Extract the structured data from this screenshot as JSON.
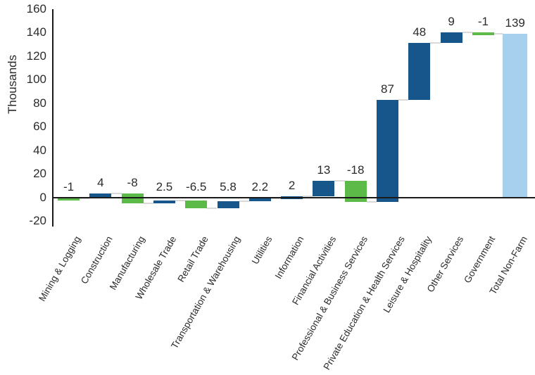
{
  "chart_data": {
    "type": "waterfall-bar",
    "title": "",
    "ylabel": "Thousands",
    "xlabel": "",
    "ylim": [
      -20,
      160
    ],
    "y_ticks": [
      160,
      140,
      120,
      100,
      80,
      60,
      40,
      20,
      0,
      -20
    ],
    "grid": false,
    "legend": "none",
    "categories": [
      "Mining & Logging",
      "Construction",
      "Manufacturing",
      "Wholesale Trade",
      "Retail Trade",
      "Transportation & Warehousing",
      "Utilities",
      "Information",
      "Financial Activities",
      "Professional & Business Services",
      "Private Education & Health Services",
      "Leisure & Hospitality",
      "Other Services",
      "Government",
      "Total Non-Farm"
    ],
    "values": [
      -1,
      4,
      -8,
      2.5,
      -6.5,
      5.8,
      2.2,
      2,
      13,
      -18,
      87,
      48,
      9,
      -1,
      139
    ],
    "data_labels": [
      "-1",
      "4",
      "-8",
      "2.5",
      "-6.5",
      "5.8",
      "2.2",
      "2",
      "13",
      "-18",
      "87",
      "48",
      "9",
      "-1",
      "139"
    ],
    "bar_roles": [
      "decrease",
      "increase",
      "decrease",
      "increase",
      "decrease",
      "increase",
      "increase",
      "increase",
      "increase",
      "decrease",
      "increase",
      "increase",
      "increase",
      "decrease",
      "total"
    ],
    "cumulative_levels": [
      -1,
      3,
      -5,
      -2.5,
      -9,
      -3.2,
      -1,
      1,
      14,
      -4,
      83,
      131,
      140,
      139,
      139
    ],
    "colors": {
      "increase": "#16568a",
      "decrease": "#5cbb48",
      "total": "#a6d0ee",
      "connector": "#d9d9d9",
      "axis": "#1a1a1a",
      "text": "#2b2b2b"
    }
  }
}
